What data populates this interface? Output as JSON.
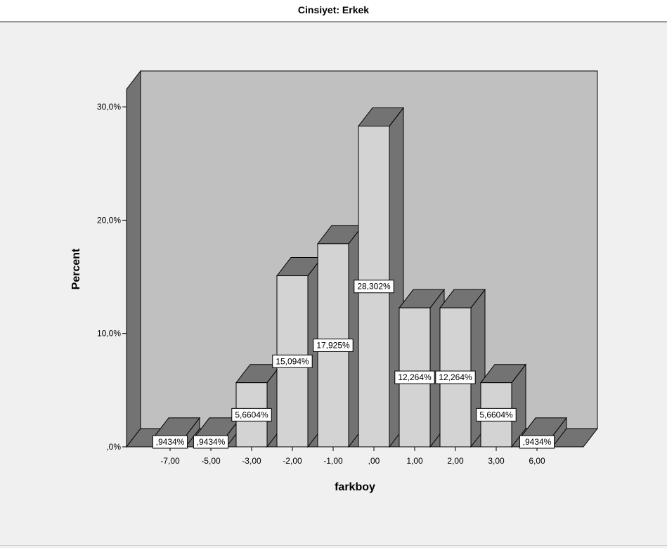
{
  "header": {
    "title": "Cinsiyet: Erkek"
  },
  "chart_data": {
    "type": "bar",
    "title": "Cinsiyet: Erkek",
    "xlabel": "farkboy",
    "ylabel": "Percent",
    "categories": [
      "-7,00",
      "-5,00",
      "-3,00",
      "-2,00",
      "-1,00",
      ",00",
      "1,00",
      "2,00",
      "3,00",
      "6,00"
    ],
    "values": [
      0.9434,
      0.9434,
      5.6604,
      15.094,
      17.925,
      28.302,
      12.264,
      12.264,
      5.6604,
      0.9434
    ],
    "data_labels": [
      ",9434%",
      ",9434%",
      "5,6604%",
      "15,094%",
      "17,925%",
      "28,302%",
      "12,264%",
      "12,264%",
      "5,6604%",
      ",9434%"
    ],
    "yticks": [
      0,
      10,
      20,
      30
    ],
    "ytick_labels": [
      ",0%",
      "10,0%",
      "20,0%",
      "30,0%"
    ],
    "ylim": [
      0,
      30
    ],
    "grid": false,
    "style": "3d",
    "colors": {
      "bar_face": "#d3d3d3",
      "bar_side": "#737373",
      "back_wall": "#c0c0c0",
      "side_wall": "#737373",
      "floor": "#737373",
      "background": "#f0f0f0"
    }
  }
}
